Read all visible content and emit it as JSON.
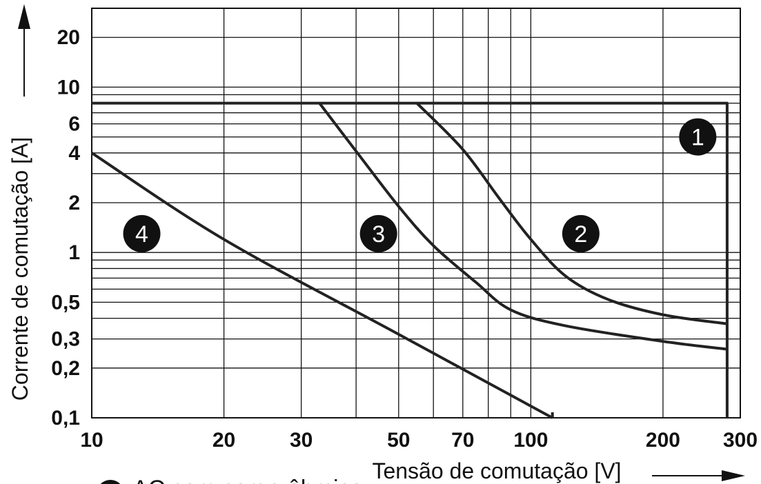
{
  "chart_data": {
    "type": "line",
    "xlabel": "Tensão de comutação [V]",
    "ylabel": "Corrente de comutação [A]",
    "x_scale": "log",
    "y_scale": "log",
    "xlim": [
      10,
      300
    ],
    "ylim": [
      0.1,
      30
    ],
    "grid": true,
    "x_ticks": [
      {
        "value": 10,
        "label": "10"
      },
      {
        "value": 20,
        "label": "20"
      },
      {
        "value": 30,
        "label": "30"
      },
      {
        "value": 50,
        "label": "50"
      },
      {
        "value": 70,
        "label": "70"
      },
      {
        "value": 100,
        "label": "100"
      },
      {
        "value": 200,
        "label": "200"
      },
      {
        "value": 300,
        "label": "300"
      }
    ],
    "y_ticks": [
      {
        "value": 0.1,
        "label": "0,1"
      },
      {
        "value": 0.2,
        "label": "0,2"
      },
      {
        "value": 0.3,
        "label": "0,3"
      },
      {
        "value": 0.5,
        "label": "0,5"
      },
      {
        "value": 1,
        "label": "1"
      },
      {
        "value": 2,
        "label": "2"
      },
      {
        "value": 4,
        "label": "4"
      },
      {
        "value": 6,
        "label": "6"
      },
      {
        "value": 10,
        "label": "10"
      },
      {
        "value": 20,
        "label": "20"
      }
    ],
    "x_grid": [
      10,
      20,
      30,
      40,
      50,
      60,
      70,
      80,
      90,
      100,
      200,
      300
    ],
    "y_grid": [
      0.1,
      0.2,
      0.3,
      0.4,
      0.5,
      0.6,
      0.7,
      0.8,
      0.9,
      1,
      2,
      3,
      4,
      5,
      6,
      7,
      8,
      9,
      10,
      20,
      30
    ],
    "series": [
      {
        "label": "1",
        "points": [
          [
            10,
            8
          ],
          [
            280,
            8
          ],
          [
            280,
            0.1
          ]
        ]
      },
      {
        "label": "2",
        "points": [
          [
            55,
            8
          ],
          [
            70,
            4.2
          ],
          [
            85,
            2.1
          ],
          [
            100,
            1.2
          ],
          [
            120,
            0.72
          ],
          [
            150,
            0.52
          ],
          [
            200,
            0.42
          ],
          [
            280,
            0.37
          ]
        ]
      },
      {
        "label": "3",
        "points": [
          [
            33,
            8
          ],
          [
            40,
            4.1
          ],
          [
            50,
            1.9
          ],
          [
            60,
            1.1
          ],
          [
            75,
            0.66
          ],
          [
            90,
            0.45
          ],
          [
            120,
            0.36
          ],
          [
            200,
            0.29
          ],
          [
            280,
            0.26
          ]
        ]
      },
      {
        "label": "4",
        "points": [
          [
            10,
            4
          ],
          [
            20,
            1.2
          ],
          [
            50,
            0.32
          ],
          [
            112,
            0.1
          ]
        ]
      }
    ],
    "callouts": [
      {
        "label": "1",
        "x": 240,
        "y": 5
      },
      {
        "label": "2",
        "x": 130,
        "y": 1.3
      },
      {
        "label": "3",
        "x": 45,
        "y": 1.3
      },
      {
        "label": "4",
        "x": 13,
        "y": 1.3
      }
    ],
    "footnote": "AC com carga ôhmica"
  }
}
